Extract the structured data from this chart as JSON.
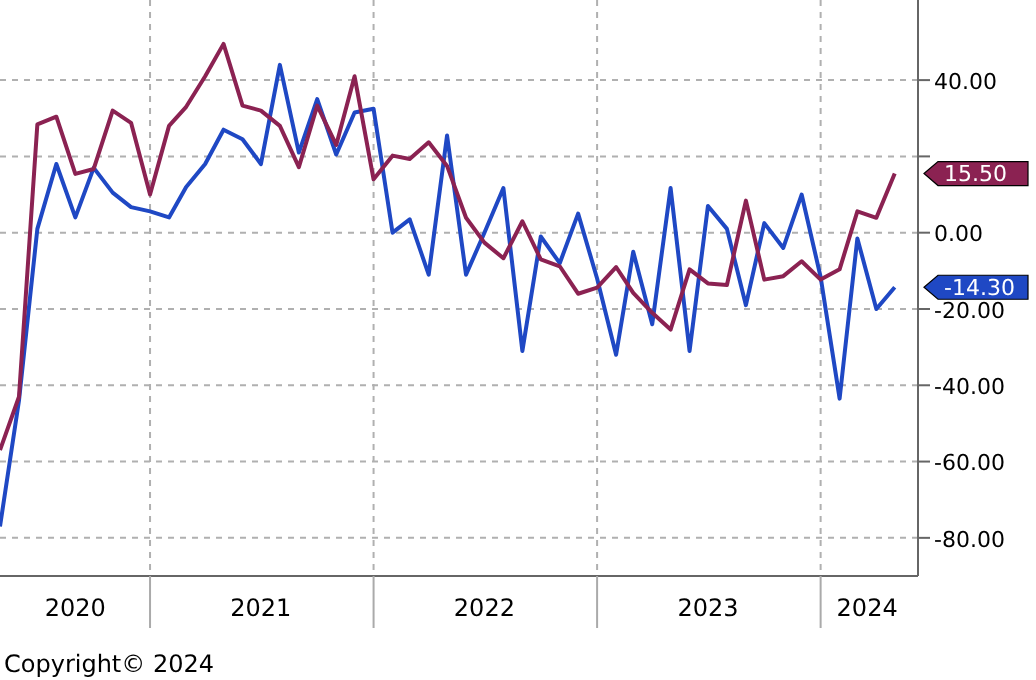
{
  "chart_data": {
    "type": "line",
    "x": [
      "2020-05",
      "2020-06",
      "2020-07",
      "2020-08",
      "2020-09",
      "2020-10",
      "2020-11",
      "2020-12",
      "2021-01",
      "2021-02",
      "2021-03",
      "2021-04",
      "2021-05",
      "2021-06",
      "2021-07",
      "2021-08",
      "2021-09",
      "2021-10",
      "2021-11",
      "2021-12",
      "2022-01",
      "2022-02",
      "2022-03",
      "2022-04",
      "2022-05",
      "2022-06",
      "2022-07",
      "2022-08",
      "2022-09",
      "2022-10",
      "2022-11",
      "2022-12",
      "2023-01",
      "2023-02",
      "2023-03",
      "2023-04",
      "2023-05",
      "2023-06",
      "2023-07",
      "2023-08",
      "2023-09",
      "2023-10",
      "2023-11",
      "2023-12",
      "2024-01",
      "2024-02",
      "2024-03",
      "2024-04",
      "2024-05"
    ],
    "series": [
      {
        "color": "#1f48c4",
        "values": [
          -77,
          -44,
          1,
          18,
          4,
          17,
          10.5,
          6.7,
          5.6,
          4,
          12,
          18,
          27,
          24.5,
          18,
          44,
          21,
          35,
          20.5,
          31.5,
          32.5,
          0,
          3.5,
          -11,
          25.5,
          -11,
          0,
          11.7,
          -31,
          -1,
          -8,
          5,
          -12,
          -32,
          -5,
          -24,
          11.7,
          -31,
          7,
          1,
          -19,
          2.5,
          -4,
          10,
          -11.6,
          -43.5,
          -1.5,
          -20,
          -14.3
        ]
      },
      {
        "color": "#8b2252",
        "values": [
          -57,
          -43,
          28.4,
          30.4,
          15.4,
          16.7,
          32,
          28.8,
          10,
          28,
          33,
          41,
          49.5,
          33.3,
          32,
          28,
          17.2,
          33.3,
          23,
          41,
          14,
          20.2,
          19.3,
          23.7,
          17.5,
          3.9,
          -2.6,
          -6.7,
          3,
          -7,
          -8.8,
          -16,
          -14.4,
          -9,
          -15.8,
          -21,
          -25.4,
          -9.6,
          -13.3,
          -13.7,
          8.4,
          -12.3,
          -11.4,
          -7.5,
          -12.3,
          -9.6,
          5.6,
          3.9,
          15.5
        ]
      }
    ],
    "xlim": [
      "2020-05",
      "2024-06-08"
    ],
    "xticks": [
      {
        "value": "2021-01",
        "label": null
      },
      {
        "value": "2022-01",
        "label": null
      },
      {
        "value": "2023-01",
        "label": null
      },
      {
        "value": "2024-01",
        "label": null
      },
      {
        "value": "2020-09",
        "label": "2020"
      },
      {
        "value": "2021-07",
        "label": "2021"
      },
      {
        "value": "2022-07",
        "label": "2022"
      },
      {
        "value": "2023-07",
        "label": "2023"
      },
      {
        "value": "2024-03-17",
        "label": "2024"
      }
    ],
    "ylim": [
      -90,
      61
    ],
    "yticks": [
      {
        "value": -80,
        "label": "-80.00"
      },
      {
        "value": -60,
        "label": "-60.00"
      },
      {
        "value": -40,
        "label": "-40.00"
      },
      {
        "value": -20,
        "label": "-20.00"
      },
      {
        "value": 0,
        "label": "0.00"
      },
      {
        "value": 20,
        "label": null
      },
      {
        "value": 40,
        "label": "40.00"
      }
    ],
    "grid": true,
    "annotations": [
      {
        "text": "15.50",
        "x": "2024-05",
        "y": 15.5
      },
      {
        "text": "-14.30",
        "x": "2024-05",
        "y": -14.3
      },
      "Copyright© 2024"
    ]
  }
}
